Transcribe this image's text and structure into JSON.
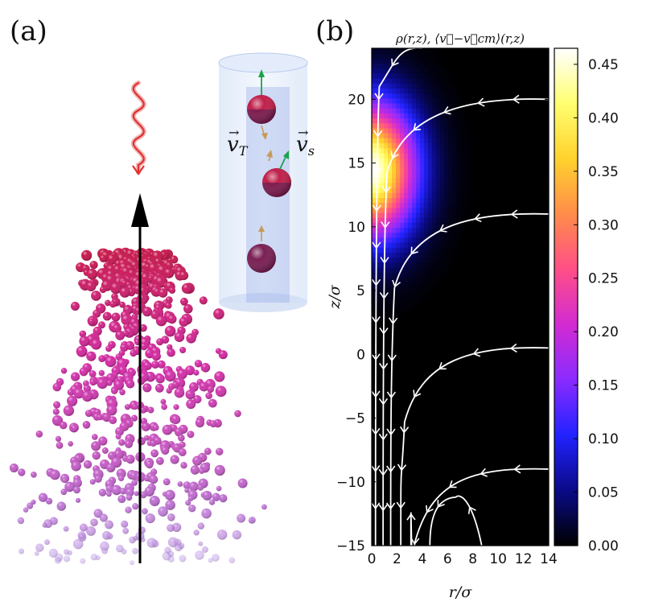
{
  "panel_a": {
    "label": "(a)",
    "inset_labels": {
      "v_T": "v⃗T",
      "v_s": "v⃗s"
    },
    "colors": {
      "particle_top": "#c8174a",
      "particle_mid": "#d62aa6",
      "particle_bottom": "#b48ee6",
      "laser": "#e0302f",
      "arrow": "#000000",
      "cylinder": "#b9cff2",
      "spin_arrow": "#1aa34a"
    }
  },
  "panel_b": {
    "label": "(b)",
    "title": "ρ(r,z), ⟨v⃗−v⃗cm⟩(r,z)"
  },
  "chart_data": {
    "type": "heatmap",
    "title": "ρ(r,z), ⟨v⃗−v⃗cm⟩(r,z)",
    "xlabel": "r/σ",
    "ylabel": "z/σ",
    "xlim": [
      0,
      14
    ],
    "ylim": [
      -15,
      24
    ],
    "xticks": [
      0,
      2,
      4,
      6,
      8,
      10,
      12,
      14
    ],
    "xtick_labels": [
      "0",
      "2",
      "4",
      "6",
      "8",
      "10",
      "12",
      "14"
    ],
    "yticks": [
      -15,
      -10,
      -5,
      0,
      5,
      10,
      15,
      20
    ],
    "ytick_labels": [
      "−15",
      "−10",
      "−5",
      "0",
      "5",
      "10",
      "15",
      "20"
    ],
    "colorbar": {
      "range": [
        0,
        0.465
      ],
      "ticks": [
        0.0,
        0.05,
        0.1,
        0.15,
        0.2,
        0.25,
        0.3,
        0.35,
        0.4,
        0.45
      ],
      "tick_labels": [
        "0.00",
        "0.05",
        "0.10",
        "0.15",
        "0.20",
        "0.25",
        "0.30",
        "0.35",
        "0.40",
        "0.45"
      ],
      "colormap": "gnuplot2-like",
      "stops": [
        "#000000",
        "#0a0a88",
        "#2222ff",
        "#8a2bff",
        "#d22bd2",
        "#ff4f87",
        "#ff8c4a",
        "#ffd22d",
        "#ffff70",
        "#ffffff"
      ]
    },
    "density_peak": {
      "r": 0,
      "z": 14.5,
      "value": 0.465,
      "sigma_r": 2.4,
      "sigma_z": 3.6
    },
    "streamlines": [
      {
        "start_r": 4.0,
        "start_z": 24.0,
        "end_r": 0.3,
        "end_z": -15
      },
      {
        "start_r": 14.0,
        "start_z": 20.0,
        "end_r": 0.9,
        "end_z": -15
      },
      {
        "start_r": 14.0,
        "start_z": 11.0,
        "end_r": 1.5,
        "end_z": -15
      },
      {
        "start_r": 14.0,
        "start_z": 0.5,
        "end_r": 2.3,
        "end_z": -15
      },
      {
        "start_r": 14.0,
        "start_z": -9.0,
        "end_r": 3.1,
        "end_z": -15
      },
      {
        "start_r": 8.7,
        "start_z": -15.0,
        "end_r": 4.6,
        "end_z": -15
      }
    ]
  }
}
